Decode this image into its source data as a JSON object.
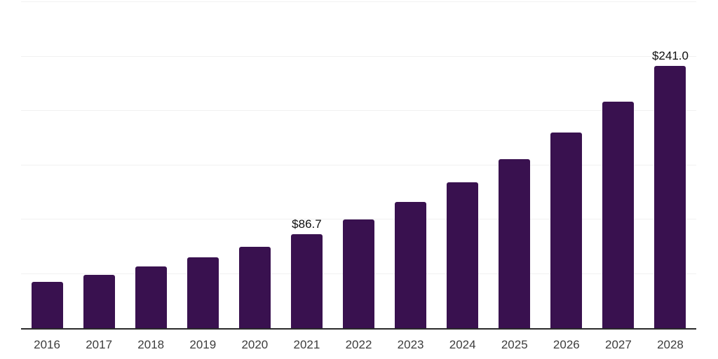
{
  "chart_data": {
    "type": "bar",
    "title": "",
    "xlabel": "",
    "ylabel": "",
    "categories": [
      "2016",
      "2017",
      "2018",
      "2019",
      "2020",
      "2021",
      "2022",
      "2023",
      "2024",
      "2025",
      "2026",
      "2027",
      "2028"
    ],
    "values": [
      42.3,
      48.8,
      56.5,
      64.9,
      75.0,
      86.7,
      100.2,
      116.1,
      134.3,
      155.4,
      180.2,
      208.5,
      241.0
    ],
    "data_labels": [
      "",
      "",
      "",
      "",
      "",
      "$86.7",
      "",
      "",
      "",
      "",
      "",
      "",
      "$241.0"
    ],
    "ylim": [
      0,
      300
    ],
    "ytick_step": 50,
    "grid": true,
    "y_tick_labels_shown": false,
    "legend": "none",
    "colors": {
      "background": "#ffffff",
      "bar": "#39114f",
      "gridline": "#f1f1f1",
      "axis_line": "#2b2b2b",
      "tick_label": "#3d3d3d",
      "data_label": "#0f0f0f"
    }
  }
}
